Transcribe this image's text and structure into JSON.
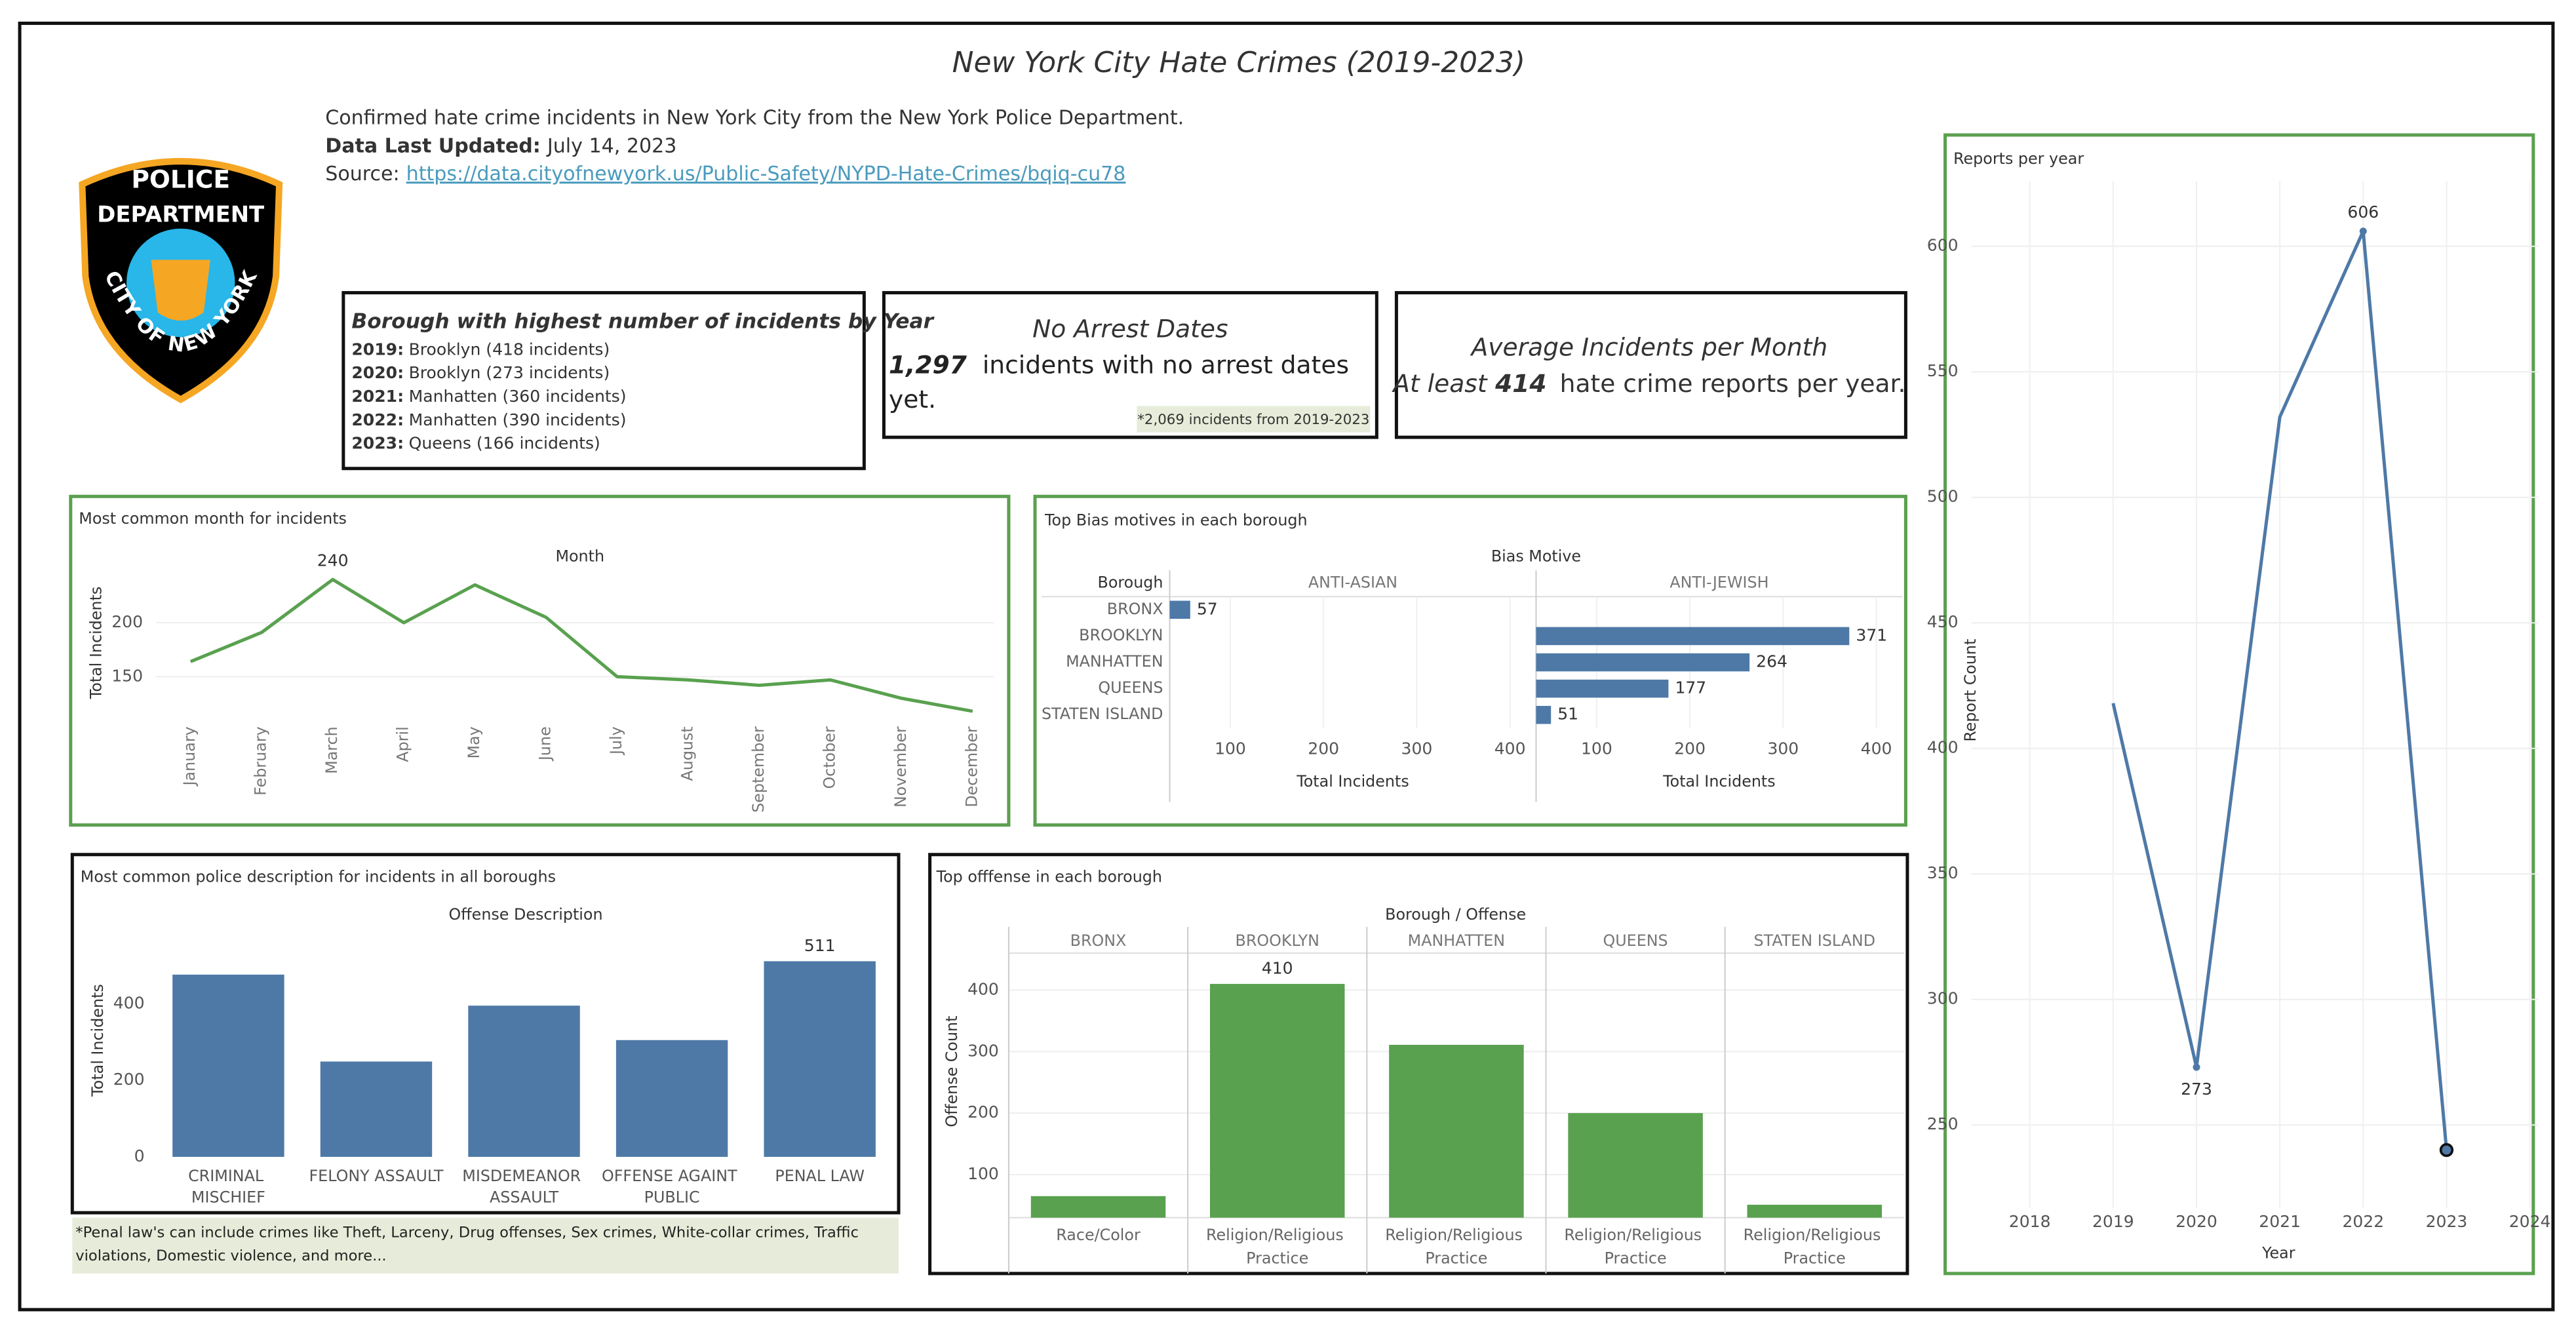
{
  "header": {
    "title": "New York City Hate Crimes (2019-2023)",
    "description": "Confirmed hate crime incidents in New York City from the New York Police Department.",
    "updated_label": "Data Last Updated:",
    "updated_value": "July 14, 2023",
    "source_label": "Source:",
    "source_url": "https://data.cityofnewyork.us/Public-Safety/NYPD-Hate-Crimes/bqiq-cu78"
  },
  "logo": {
    "line1": "POLICE",
    "line2": "DEPARTMENT",
    "arc": "CITY OF NEW YORK"
  },
  "borough_box": {
    "title": "Borough with highest number of incidents by Year",
    "rows": [
      {
        "year": "2019:",
        "text": "Brooklyn (418 incidents)"
      },
      {
        "year": "2020:",
        "text": "Brooklyn (273 incidents)"
      },
      {
        "year": "2021:",
        "text": "Manhatten (360 incidents)"
      },
      {
        "year": "2022:",
        "text": "Manhatten (390 incidents)"
      },
      {
        "year": "2023:",
        "text": "Queens (166 incidents)"
      }
    ]
  },
  "kpi_no_arrest": {
    "title": "No Arrest Dates",
    "value": "1,297",
    "text": "incidents with no arrest dates yet.",
    "note": "*2,069 incidents from 2019-2023"
  },
  "kpi_average": {
    "title": "Average Incidents per Month",
    "prefix": "At least",
    "value": "414",
    "text": "hate crime reports per year."
  },
  "penal_note": "*Penal law's can include crimes like Theft, Larceny, Drug offenses, Sex crimes, White-collar crimes, Traffic violations, Domestic violence, and more...",
  "chart_data": [
    {
      "type": "line",
      "title": "Most common month for incidents",
      "header": "Month",
      "ylabel": "Total Incidents",
      "categories": [
        "January",
        "February",
        "March",
        "April",
        "May",
        "June",
        "July",
        "August",
        "September",
        "October",
        "November",
        "December"
      ],
      "values": [
        164,
        191,
        240,
        200,
        235,
        205,
        150,
        147,
        142,
        147,
        130,
        118
      ],
      "value_labels": [
        null,
        null,
        "240",
        null,
        null,
        null,
        null,
        null,
        null,
        null,
        null,
        null
      ],
      "color": "#59a14f",
      "ylim": [
        110,
        250
      ],
      "yticks": [
        150,
        200
      ],
      "grid": true
    },
    {
      "type": "bar",
      "orientation": "horizontal",
      "title": "Top Bias motives in each borough",
      "header": "Bias Motive",
      "row_header": "Borough",
      "categories": [
        "BRONX",
        "BROOKLYN",
        "MANHATTEN",
        "QUEENS",
        "STATEN ISLAND"
      ],
      "series": [
        {
          "name": "ANTI-ASIAN",
          "color": "#4e79a7",
          "values": [
            57,
            null,
            null,
            null,
            null
          ]
        },
        {
          "name": "ANTI-JEWISH",
          "color": "#4e79a7",
          "values": [
            null,
            371,
            264,
            177,
            51
          ]
        }
      ],
      "xlabel": "Total Incidents",
      "xlim": [
        35,
        428
      ],
      "xticks": [
        100,
        200,
        300,
        400
      ],
      "grid": true
    },
    {
      "type": "bar",
      "title": "Most common police description for incidents in all boroughs",
      "header": "Offense Description",
      "ylabel": "Total Incidents",
      "categories": [
        "CRIMINAL MISCHIEF",
        "FELONY ASSAULT",
        "MISDEMEANOR ASSAULT",
        "OFFENSE AGAINT PUBLIC",
        "PENAL LAW"
      ],
      "values": [
        476,
        249,
        395,
        305,
        511
      ],
      "value_labels": [
        null,
        null,
        null,
        null,
        "511"
      ],
      "color": "#4e79a7",
      "ylim": [
        0,
        560
      ],
      "yticks": [
        0,
        200,
        400
      ],
      "grid": false
    },
    {
      "type": "bar",
      "title": "Top offfense in each borough",
      "header": "Borough / Offense",
      "ylabel": "Offense Count",
      "categories": [
        "BRONX",
        "BROOKLYN",
        "MANHATTEN",
        "QUEENS",
        "STATEN ISLAND"
      ],
      "offenses": [
        "Race/Color",
        "Religion/Religious Practice",
        "Religion/Religious Practice",
        "Religion/Religious Practice",
        "Religion/Religious Practice"
      ],
      "values": [
        65,
        410,
        311,
        200,
        51
      ],
      "value_labels": [
        null,
        "410",
        null,
        null,
        null
      ],
      "color": "#59a14f",
      "ylim": [
        30,
        460
      ],
      "yticks": [
        100,
        200,
        300,
        400
      ],
      "grid": true
    },
    {
      "type": "line",
      "title": "Reports per year",
      "xlabel": "Year",
      "ylabel": "Report Count",
      "x": [
        2019,
        2020,
        2021,
        2022,
        2023
      ],
      "values": [
        418,
        273,
        532,
        606,
        240
      ],
      "value_labels": [
        null,
        "273",
        null,
        "606",
        null
      ],
      "color": "#4e79a7",
      "xlim": [
        2017.3,
        2024.1
      ],
      "xticks": [
        2018,
        2019,
        2020,
        2021,
        2022,
        2023,
        2024
      ],
      "ylim": [
        217,
        626
      ],
      "yticks": [
        250,
        300,
        350,
        400,
        450,
        500,
        550,
        600
      ],
      "grid": true
    }
  ]
}
